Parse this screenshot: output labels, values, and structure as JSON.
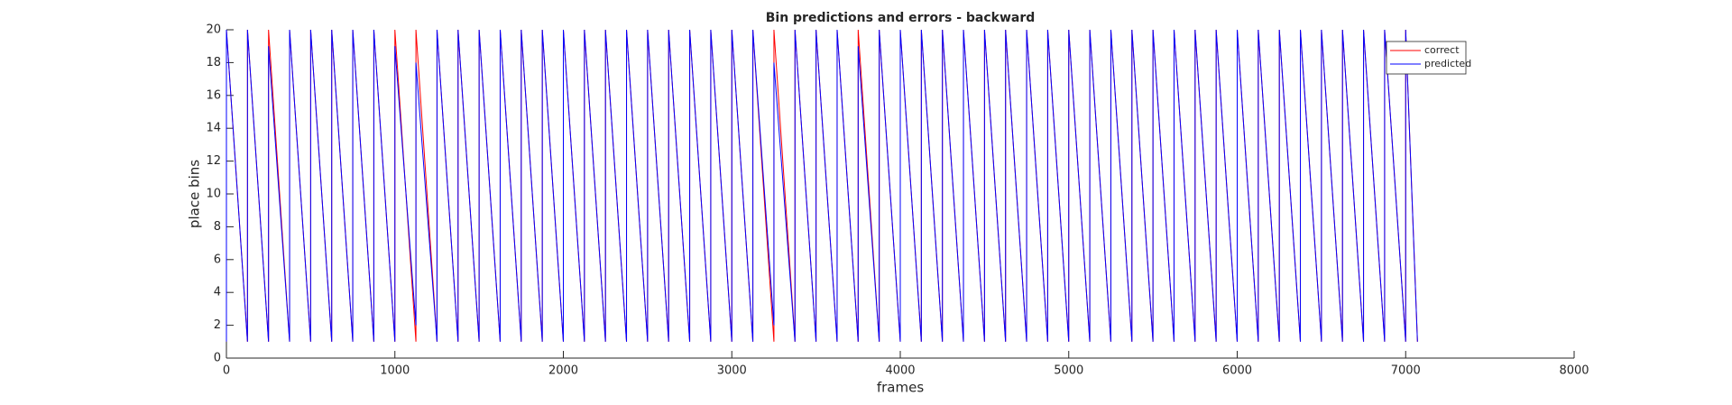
{
  "chart_data": {
    "type": "line",
    "title": "Bin predictions and errors - backward",
    "x_label": "frames",
    "y_label": "place bins",
    "x": [
      0,
      0,
      125,
      125,
      250,
      250,
      375,
      375,
      500,
      500,
      625,
      625,
      750,
      750,
      875,
      875,
      1000,
      1000,
      1125,
      1125,
      1250,
      1250,
      1375,
      1375,
      1500,
      1500,
      1625,
      1625,
      1750,
      1750,
      1875,
      1875,
      2000,
      2000,
      2125,
      2125,
      2250,
      2250,
      2375,
      2375,
      2500,
      2500,
      2625,
      2625,
      2750,
      2750,
      2875,
      2875,
      3000,
      3000,
      3125,
      3125,
      3250,
      3250,
      3375,
      3375,
      3500,
      3500,
      3625,
      3625,
      3750,
      3750,
      3875,
      3875,
      4000,
      4000,
      4125,
      4125,
      4250,
      4250,
      4375,
      4375,
      4500,
      4500,
      4625,
      4625,
      4750,
      4750,
      4875,
      4875,
      5000,
      5000,
      5125,
      5125,
      5250,
      5250,
      5375,
      5375,
      5500,
      5500,
      5625,
      5625,
      5750,
      5750,
      5875,
      5875,
      6000,
      6000,
      6125,
      6125,
      6250,
      6250,
      6375,
      6375,
      6500,
      6500,
      6625,
      6625,
      6750,
      6750,
      6875,
      6875,
      7000,
      7000,
      7070
    ],
    "series": [
      {
        "name": "correct",
        "color": "#ff0000",
        "values": [
          1,
          20,
          1,
          20,
          1,
          20,
          1,
          20,
          1,
          20,
          1,
          20,
          1,
          20,
          1,
          20,
          1,
          20,
          1,
          20,
          1,
          20,
          1,
          20,
          1,
          20,
          1,
          20,
          1,
          20,
          1,
          20,
          1,
          20,
          1,
          20,
          1,
          20,
          1,
          20,
          1,
          20,
          1,
          20,
          1,
          20,
          1,
          20,
          1,
          20,
          1,
          20,
          1,
          20,
          1,
          20,
          1,
          20,
          1,
          20,
          1,
          20,
          1,
          20,
          1,
          20,
          1,
          20,
          1,
          20,
          1,
          20,
          1,
          20,
          1,
          20,
          1,
          20,
          1,
          20,
          1,
          20,
          1,
          20,
          1,
          20,
          1,
          20,
          1,
          20,
          1,
          20,
          1,
          20,
          1,
          20,
          1,
          20,
          1,
          20,
          1,
          20,
          1,
          20,
          1,
          20,
          1,
          20,
          1,
          20,
          1,
          20,
          1,
          20,
          1
        ]
      },
      {
        "name": "predicted",
        "color": "#0000ff",
        "values": [
          1,
          20,
          1,
          20,
          1,
          19,
          1,
          20,
          1,
          20,
          1,
          20,
          1,
          20,
          1,
          20,
          1,
          19,
          2,
          18,
          1,
          20,
          1,
          20,
          1,
          20,
          1,
          20,
          1,
          20,
          1,
          20,
          1,
          20,
          1,
          20,
          1,
          20,
          1,
          20,
          1,
          20,
          1,
          20,
          1,
          20,
          1,
          20,
          1,
          20,
          1,
          20,
          2,
          18,
          1,
          20,
          1,
          20,
          1,
          20,
          1,
          19,
          1,
          20,
          1,
          20,
          1,
          20,
          1,
          20,
          1,
          20,
          1,
          20,
          1,
          20,
          1,
          20,
          1,
          20,
          1,
          20,
          1,
          20,
          1,
          20,
          1,
          20,
          1,
          20,
          1,
          20,
          1,
          20,
          1,
          20,
          1,
          20,
          1,
          20,
          1,
          20,
          1,
          20,
          1,
          20,
          1,
          20,
          1,
          20,
          1,
          20,
          1,
          20,
          1
        ]
      }
    ],
    "xlim": [
      0,
      8000
    ],
    "xticks": [
      0,
      1000,
      2000,
      3000,
      4000,
      5000,
      6000,
      7000,
      8000
    ],
    "ylim": [
      0,
      20
    ],
    "yticks": [
      0,
      2,
      4,
      6,
      8,
      10,
      12,
      14,
      16,
      18,
      20
    ],
    "legend": "upper right"
  }
}
